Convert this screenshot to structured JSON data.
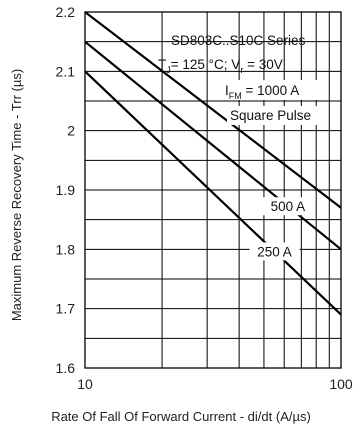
{
  "chart_data": {
    "type": "line",
    "xscale": "log",
    "xlim": [
      10,
      100
    ],
    "ylim": [
      1.6,
      2.2
    ],
    "xlabel": "Rate Of Fall Of Forward Current - di/dt (A/µs)",
    "ylabel": "Maximum Reverse Recovery Time - Trr (µs)",
    "x_ticks": [
      "10",
      "100"
    ],
    "y_ticks": [
      "1.6",
      "1.7",
      "1.8",
      "1.9",
      "2",
      "2.1",
      "2.2"
    ],
    "grid": true,
    "annotations": {
      "title_line1": "SD803C..S10C Series",
      "cond_tj": "T",
      "cond_tj_sub": "J",
      "cond_tj_rest": "= 125 °C; V",
      "cond_vr_sub": "r",
      "cond_vr_rest": " = 30V",
      "ifm_main": "I",
      "ifm_sub": "FM",
      "ifm_rest": " = 1000 A",
      "pulse": "Square Pulse"
    },
    "series": [
      {
        "name": "1000 A",
        "x": [
          10,
          100
        ],
        "y": [
          2.2,
          1.87
        ]
      },
      {
        "name": "500 A",
        "x": [
          10,
          100
        ],
        "y": [
          2.15,
          1.8
        ]
      },
      {
        "name": "250 A",
        "x": [
          10,
          100
        ],
        "y": [
          2.1,
          1.69
        ]
      }
    ]
  }
}
